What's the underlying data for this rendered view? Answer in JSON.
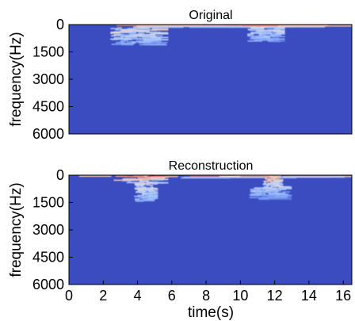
{
  "chart_data": [
    {
      "type": "heatmap",
      "title": "Original",
      "ylabel": "frequency(Hz)",
      "xlabel": "",
      "xlim": [
        0,
        16.5
      ],
      "ylim": [
        6000,
        0
      ],
      "yticks": [
        "0",
        "1500",
        "3000",
        "4500",
        "6000"
      ],
      "xticks": [],
      "colormap": [
        "#3b4cc0",
        "#6f92f3",
        "#aac7fd",
        "#dddcdc",
        "#f7b89c",
        "#e7745b",
        "#b40426"
      ],
      "energy_regions": [
        {
          "t0": 0.0,
          "t1": 16.5,
          "f0": 0,
          "f1": 120,
          "intensity": 0.9
        },
        {
          "t0": 2.4,
          "t1": 5.8,
          "f0": 100,
          "f1": 1100,
          "intensity": 0.6
        },
        {
          "t0": 10.4,
          "t1": 12.6,
          "f0": 100,
          "f1": 900,
          "intensity": 0.55
        }
      ]
    },
    {
      "type": "heatmap",
      "title": "Reconstruction",
      "ylabel": "frequency(Hz)",
      "xlabel": "time(s)",
      "xlim": [
        0,
        16.5
      ],
      "ylim": [
        6000,
        0
      ],
      "yticks": [
        "0",
        "1500",
        "3000",
        "4500",
        "6000"
      ],
      "xticks": [
        "0",
        "2",
        "4",
        "6",
        "8",
        "10",
        "12",
        "14",
        "16"
      ],
      "colormap": [
        "#3b4cc0",
        "#6f92f3",
        "#aac7fd",
        "#dddcdc",
        "#f7b89c",
        "#e7745b",
        "#b40426"
      ],
      "energy_regions": [
        {
          "t0": 0.0,
          "t1": 16.5,
          "f0": 0,
          "f1": 120,
          "intensity": 0.85
        },
        {
          "t0": 2.6,
          "t1": 5.8,
          "f0": 0,
          "f1": 400,
          "intensity": 1.0
        },
        {
          "t0": 3.8,
          "t1": 5.2,
          "f0": 400,
          "f1": 1400,
          "intensity": 0.6
        },
        {
          "t0": 11.3,
          "t1": 12.5,
          "f0": 0,
          "f1": 600,
          "intensity": 0.95
        },
        {
          "t0": 10.5,
          "t1": 13.0,
          "f0": 600,
          "f1": 1300,
          "intensity": 0.45
        }
      ]
    }
  ]
}
